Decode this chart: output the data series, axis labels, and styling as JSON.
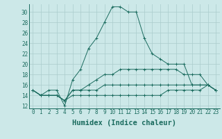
{
  "xlabel": "Humidex (Indice chaleur)",
  "x_values": [
    0,
    1,
    2,
    3,
    4,
    5,
    6,
    7,
    8,
    9,
    10,
    11,
    12,
    13,
    14,
    15,
    16,
    17,
    18,
    19,
    20,
    21,
    22,
    23
  ],
  "series": [
    [
      15,
      14,
      15,
      15,
      12,
      17,
      19,
      23,
      25,
      28,
      31,
      31,
      30,
      30,
      25,
      22,
      21,
      20,
      20,
      20,
      16,
      16,
      16,
      15
    ],
    [
      15,
      14,
      14,
      14,
      13,
      15,
      15,
      16,
      17,
      18,
      18,
      19,
      19,
      19,
      19,
      19,
      19,
      19,
      19,
      18,
      18,
      18,
      16,
      15
    ],
    [
      15,
      14,
      14,
      14,
      13,
      15,
      15,
      15,
      15,
      16,
      16,
      16,
      16,
      16,
      16,
      16,
      16,
      16,
      16,
      16,
      16,
      16,
      16,
      15
    ],
    [
      15,
      14,
      14,
      14,
      13,
      14,
      14,
      14,
      14,
      14,
      14,
      14,
      14,
      14,
      14,
      14,
      14,
      15,
      15,
      15,
      15,
      15,
      16,
      15
    ]
  ],
  "line_color": "#1a6b5e",
  "bg_color": "#cce8e8",
  "grid_color": "#aacccc",
  "ylim": [
    11.5,
    31.5
  ],
  "yticks": [
    12,
    14,
    16,
    18,
    20,
    22,
    24,
    26,
    28,
    30
  ],
  "xlim": [
    -0.5,
    23.5
  ],
  "tick_fontsize": 5.5,
  "label_fontsize": 7.5
}
